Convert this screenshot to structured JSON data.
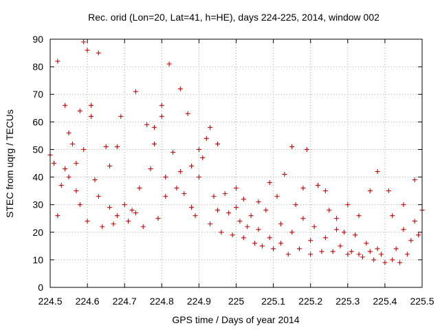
{
  "chart_data": {
    "type": "scatter",
    "title": "Rec. orid (Lon=20, Lat=41, h=HE), days 224-225, 2014, window 002",
    "xlabel": "GPS time / Days of year 2014",
    "ylabel": "STEC from uqrg / TECUs",
    "xlim": [
      224.5,
      225.5
    ],
    "ylim": [
      0,
      90
    ],
    "x_ticks": [
      224.5,
      224.6,
      224.7,
      224.8,
      224.9,
      225,
      225.1,
      225.2,
      225.3,
      225.4,
      225.5
    ],
    "x_tick_labels": [
      "224.5",
      "224.6",
      "224.7",
      "224.8",
      "224.9",
      "225",
      "225.1",
      "225.2",
      "225.3",
      "225.4",
      "225.5"
    ],
    "y_ticks": [
      0,
      10,
      20,
      30,
      40,
      50,
      60,
      70,
      80,
      90
    ],
    "y_tick_labels": [
      "0",
      "10",
      "20",
      "30",
      "40",
      "50",
      "60",
      "70",
      "80",
      "90"
    ],
    "grid": true,
    "marker": "+",
    "series_color": "#cc0000",
    "points": [
      [
        224.5,
        48
      ],
      [
        224.51,
        45
      ],
      [
        224.52,
        82
      ],
      [
        224.52,
        26
      ],
      [
        224.53,
        37
      ],
      [
        224.54,
        66
      ],
      [
        224.54,
        43
      ],
      [
        224.55,
        40
      ],
      [
        224.55,
        56
      ],
      [
        224.56,
        52
      ],
      [
        224.57,
        35
      ],
      [
        224.57,
        45
      ],
      [
        224.58,
        64
      ],
      [
        224.58,
        30
      ],
      [
        224.59,
        89
      ],
      [
        224.59,
        50
      ],
      [
        224.6,
        24
      ],
      [
        224.6,
        86
      ],
      [
        224.61,
        66
      ],
      [
        224.61,
        62
      ],
      [
        224.62,
        39
      ],
      [
        224.63,
        85
      ],
      [
        224.63,
        33
      ],
      [
        224.64,
        22
      ],
      [
        224.65,
        51
      ],
      [
        224.66,
        44
      ],
      [
        224.66,
        29
      ],
      [
        224.67,
        23
      ],
      [
        224.68,
        51
      ],
      [
        224.68,
        26
      ],
      [
        224.69,
        62
      ],
      [
        224.7,
        30
      ],
      [
        224.71,
        24
      ],
      [
        224.72,
        28
      ],
      [
        224.73,
        27
      ],
      [
        224.73,
        71
      ],
      [
        224.74,
        36
      ],
      [
        224.75,
        22
      ],
      [
        224.76,
        59
      ],
      [
        224.77,
        43
      ],
      [
        224.78,
        58
      ],
      [
        224.78,
        52
      ],
      [
        224.79,
        25
      ],
      [
        224.8,
        62
      ],
      [
        224.8,
        66
      ],
      [
        224.81,
        33
      ],
      [
        224.81,
        40
      ],
      [
        224.82,
        81
      ],
      [
        224.83,
        49
      ],
      [
        224.84,
        36
      ],
      [
        224.85,
        42
      ],
      [
        224.85,
        72
      ],
      [
        224.86,
        34
      ],
      [
        224.87,
        63
      ],
      [
        224.88,
        29
      ],
      [
        224.88,
        44
      ],
      [
        224.89,
        26
      ],
      [
        224.9,
        50
      ],
      [
        224.9,
        40
      ],
      [
        224.91,
        47
      ],
      [
        224.92,
        54
      ],
      [
        224.93,
        58
      ],
      [
        224.93,
        23
      ],
      [
        224.94,
        33
      ],
      [
        224.95,
        52
      ],
      [
        224.95,
        28
      ],
      [
        224.96,
        20
      ],
      [
        224.97,
        34
      ],
      [
        224.98,
        27
      ],
      [
        224.99,
        19
      ],
      [
        225.0,
        29
      ],
      [
        225.0,
        36
      ],
      [
        225.01,
        24
      ],
      [
        225.02,
        18
      ],
      [
        225.02,
        32
      ],
      [
        225.03,
        22
      ],
      [
        225.04,
        26
      ],
      [
        225.05,
        16
      ],
      [
        225.06,
        31
      ],
      [
        225.06,
        21
      ],
      [
        225.07,
        15
      ],
      [
        225.08,
        28
      ],
      [
        225.09,
        38
      ],
      [
        225.09,
        18
      ],
      [
        225.1,
        14
      ],
      [
        225.11,
        33
      ],
      [
        225.12,
        23
      ],
      [
        225.12,
        16
      ],
      [
        225.13,
        41
      ],
      [
        225.14,
        12
      ],
      [
        225.15,
        51
      ],
      [
        225.15,
        20
      ],
      [
        225.16,
        30
      ],
      [
        225.17,
        14
      ],
      [
        225.18,
        36
      ],
      [
        225.18,
        25
      ],
      [
        225.19,
        50
      ],
      [
        225.2,
        17
      ],
      [
        225.2,
        12
      ],
      [
        225.21,
        22
      ],
      [
        225.22,
        37
      ],
      [
        225.23,
        13
      ],
      [
        225.24,
        35
      ],
      [
        225.24,
        18
      ],
      [
        225.25,
        28
      ],
      [
        225.26,
        13
      ],
      [
        225.27,
        21
      ],
      [
        225.27,
        25
      ],
      [
        225.28,
        15
      ],
      [
        225.29,
        20
      ],
      [
        225.3,
        30
      ],
      [
        225.3,
        12
      ],
      [
        225.31,
        13
      ],
      [
        225.32,
        19
      ],
      [
        225.33,
        12
      ],
      [
        225.33,
        26
      ],
      [
        225.34,
        11
      ],
      [
        225.35,
        16
      ],
      [
        225.36,
        35
      ],
      [
        225.36,
        13
      ],
      [
        225.37,
        10
      ],
      [
        225.38,
        42
      ],
      [
        225.38,
        14
      ],
      [
        225.39,
        12
      ],
      [
        225.4,
        9
      ],
      [
        225.41,
        35
      ],
      [
        225.42,
        10
      ],
      [
        225.42,
        26
      ],
      [
        225.43,
        14
      ],
      [
        225.44,
        9
      ],
      [
        225.45,
        21
      ],
      [
        225.45,
        30
      ],
      [
        225.46,
        12
      ],
      [
        225.47,
        17
      ],
      [
        225.48,
        39
      ],
      [
        225.48,
        24
      ],
      [
        225.49,
        19
      ],
      [
        225.5,
        28
      ]
    ]
  }
}
